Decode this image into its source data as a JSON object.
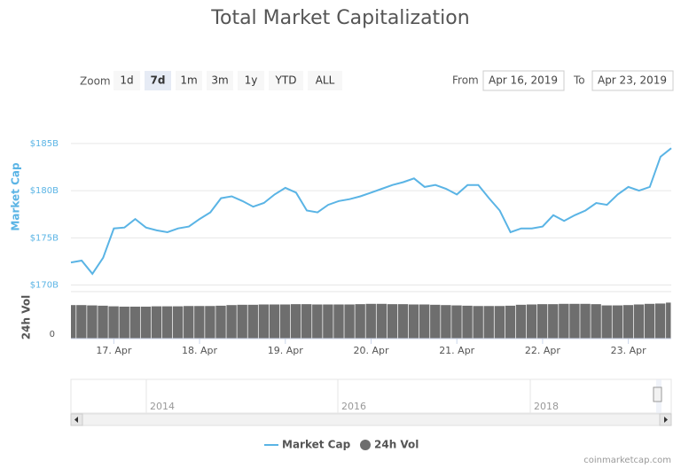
{
  "chart_data": {
    "type": "line",
    "title": "Total Market Capitalization",
    "zoom_label": "Zoom",
    "zoom_buttons": [
      "1d",
      "7d",
      "1m",
      "3m",
      "1y",
      "YTD",
      "ALL"
    ],
    "selected_zoom": "7d",
    "from_label": "From",
    "from": "Apr 16, 2019",
    "to_label": "To",
    "to": "Apr 23, 2019",
    "x": [
      16.5,
      16.625,
      16.75,
      16.875,
      17.0,
      17.125,
      17.25,
      17.375,
      17.5,
      17.625,
      17.75,
      17.875,
      18.0,
      18.125,
      18.25,
      18.375,
      18.5,
      18.625,
      18.75,
      18.875,
      19.0,
      19.125,
      19.25,
      19.375,
      19.5,
      19.625,
      19.75,
      19.875,
      20.0,
      20.125,
      20.25,
      20.375,
      20.5,
      20.625,
      20.75,
      20.875,
      21.0,
      21.125,
      21.25,
      21.375,
      21.5,
      21.625,
      21.75,
      21.875,
      22.0,
      22.125,
      22.25,
      22.375,
      22.5,
      22.625,
      22.75,
      22.875,
      23.0,
      23.125,
      23.25,
      23.375,
      23.5
    ],
    "xlim": [
      16.5,
      23.5
    ],
    "xticks": [
      {
        "value": 17,
        "label": "17. Apr"
      },
      {
        "value": 18,
        "label": "18. Apr"
      },
      {
        "value": 19,
        "label": "19. Apr"
      },
      {
        "value": 20,
        "label": "20. Apr"
      },
      {
        "value": 21,
        "label": "21. Apr"
      },
      {
        "value": 22,
        "label": "22. Apr"
      },
      {
        "value": 23,
        "label": "23. Apr"
      }
    ],
    "series": [
      {
        "name": "Market Cap",
        "color": "#5ab4e5",
        "values": [
          172.4,
          172.6,
          171.2,
          172.9,
          176.0,
          176.1,
          177.0,
          176.1,
          175.8,
          175.6,
          176.0,
          176.2,
          177.0,
          177.7,
          179.2,
          179.4,
          178.9,
          178.3,
          178.7,
          179.6,
          180.3,
          179.8,
          177.9,
          177.7,
          178.5,
          178.9,
          179.1,
          179.4,
          179.8,
          180.2,
          180.6,
          180.9,
          181.3,
          180.4,
          180.6,
          180.2,
          179.6,
          180.6,
          180.6,
          179.2,
          177.9,
          175.6,
          176.0,
          176.0,
          176.2,
          177.4,
          176.8,
          177.4,
          177.9,
          178.7,
          178.5,
          179.6,
          180.4,
          180.0,
          180.4,
          183.6,
          184.5
        ]
      },
      {
        "name": "24h Vol",
        "color": "#6e6e6e",
        "axis": "y2",
        "values": [
          54,
          54,
          53.5,
          53,
          52,
          51.5,
          51.5,
          51.5,
          52,
          52,
          52,
          52.5,
          52.5,
          52.5,
          53,
          54,
          54.5,
          54.5,
          55,
          55,
          55,
          55.5,
          55.5,
          55,
          55,
          55,
          55,
          55.5,
          56,
          56,
          55.5,
          55.5,
          55,
          55,
          54.5,
          54,
          53.5,
          53,
          52.5,
          52.5,
          52.5,
          53,
          54.5,
          55,
          55.5,
          55.5,
          56,
          56,
          56,
          55.5,
          53.5,
          53.5,
          54,
          55,
          56,
          56.5,
          58
        ]
      }
    ],
    "ylabel": "Market Cap",
    "ylim": [
      169.5,
      186.3
    ],
    "yticks": [
      {
        "value": 170,
        "label": "$170B"
      },
      {
        "value": 175,
        "label": "$175B"
      },
      {
        "value": 180,
        "label": "$180B"
      },
      {
        "value": 185,
        "label": "$185B"
      }
    ],
    "y2label": "24h Vol",
    "y2lim": [
      0,
      70
    ],
    "y2ticks": [
      0
    ],
    "grid": true,
    "navigator_labels": [
      "2014",
      "2016",
      "2018"
    ],
    "credit": "coinmarketcap.com"
  }
}
